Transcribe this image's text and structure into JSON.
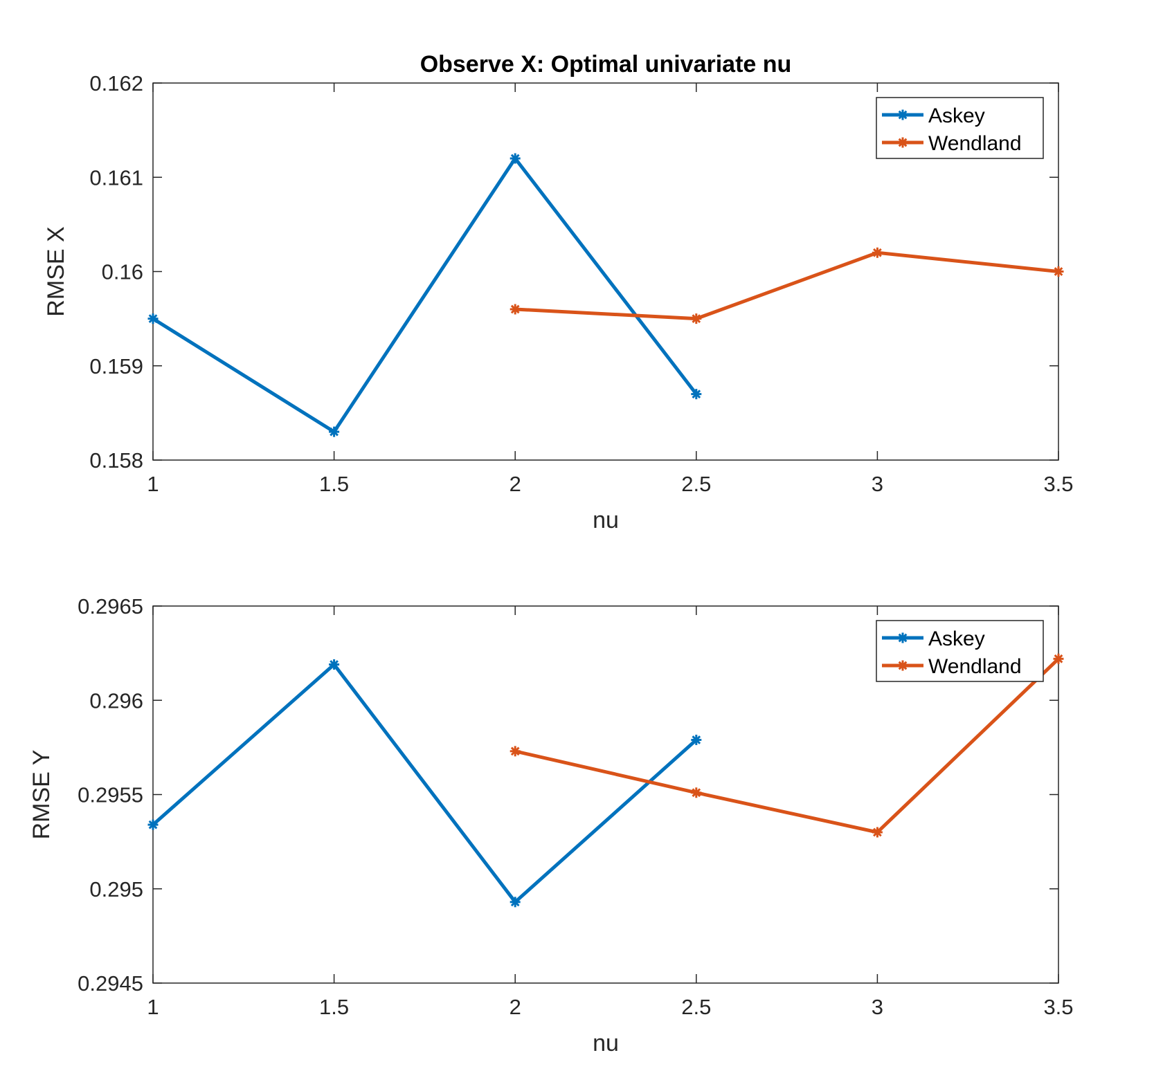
{
  "chart_data": [
    {
      "type": "line",
      "title": "Observe X: Optimal univariate nu",
      "xlabel": "nu",
      "ylabel": "RMSE X",
      "xlim": [
        1,
        3.5
      ],
      "ylim": [
        0.158,
        0.162
      ],
      "xticks": [
        "1",
        "1.5",
        "2",
        "2.5",
        "3",
        "3.5"
      ],
      "yticks": [
        "0.158",
        "0.159",
        "0.16",
        "0.161",
        "0.162"
      ],
      "legend_position": "top-right",
      "series": [
        {
          "name": "Askey",
          "color": "#0072BD",
          "x": [
            1,
            1.5,
            2,
            2.5
          ],
          "y": [
            0.1595,
            0.1583,
            0.1612,
            0.1587
          ]
        },
        {
          "name": "Wendland",
          "color": "#D95319",
          "x": [
            2,
            2.5,
            3,
            3.5
          ],
          "y": [
            0.1596,
            0.1595,
            0.1602,
            0.16
          ]
        }
      ]
    },
    {
      "type": "line",
      "title": "",
      "xlabel": "nu",
      "ylabel": "RMSE Y",
      "xlim": [
        1,
        3.5
      ],
      "ylim": [
        0.2945,
        0.2965
      ],
      "xticks": [
        "1",
        "1.5",
        "2",
        "2.5",
        "3",
        "3.5"
      ],
      "yticks": [
        "0.2945",
        "0.295",
        "0.2955",
        "0.296",
        "0.2965"
      ],
      "legend_position": "top-right",
      "series": [
        {
          "name": "Askey",
          "color": "#0072BD",
          "x": [
            1,
            1.5,
            2,
            2.5
          ],
          "y": [
            0.29534,
            0.29619,
            0.29493,
            0.29579
          ]
        },
        {
          "name": "Wendland",
          "color": "#D95319",
          "x": [
            2,
            2.5,
            3,
            3.5
          ],
          "y": [
            0.29573,
            0.29551,
            0.2953,
            0.29622
          ]
        }
      ]
    }
  ]
}
